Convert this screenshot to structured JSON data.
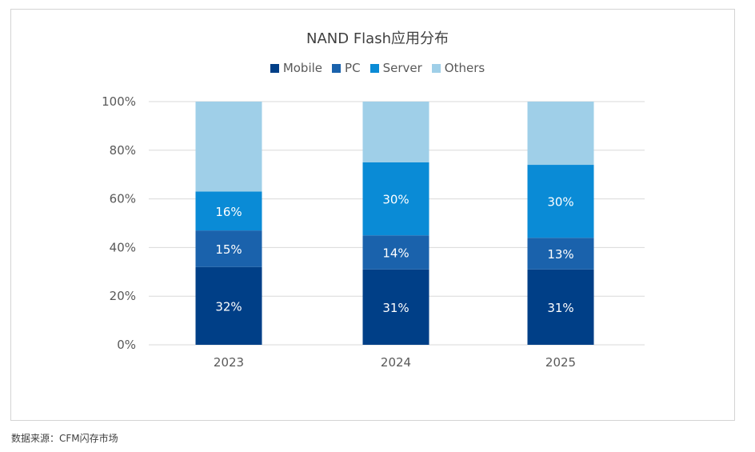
{
  "chart_data": {
    "type": "bar",
    "stacked": true,
    "title": "NAND Flash应用分布",
    "categories": [
      "2023",
      "2024",
      "2025"
    ],
    "series": [
      {
        "name": "Mobile",
        "values": [
          32,
          31,
          31
        ],
        "labels": [
          "32%",
          "31%",
          "31%"
        ],
        "color": "#003f87"
      },
      {
        "name": "PC",
        "values": [
          15,
          14,
          13
        ],
        "labels": [
          "15%",
          "14%",
          "13%"
        ],
        "color": "#1a62ac"
      },
      {
        "name": "Server",
        "values": [
          16,
          30,
          30
        ],
        "labels": [
          "16%",
          "30%",
          "30%"
        ],
        "color": "#0a8bd6"
      },
      {
        "name": "Others",
        "values": [
          37,
          25,
          26
        ],
        "labels": [
          "",
          "",
          ""
        ],
        "color": "#9fcfe8"
      }
    ],
    "yticks": [
      "0%",
      "20%",
      "40%",
      "60%",
      "80%",
      "100%"
    ],
    "ylim": [
      0,
      100
    ],
    "xlabel": "",
    "ylabel": "",
    "legend": "top-center",
    "grid": true
  },
  "source": "数据来源：CFM闪存市场",
  "colors": {
    "grid": "#d9d9d9",
    "frame": "#d4d4d4"
  }
}
